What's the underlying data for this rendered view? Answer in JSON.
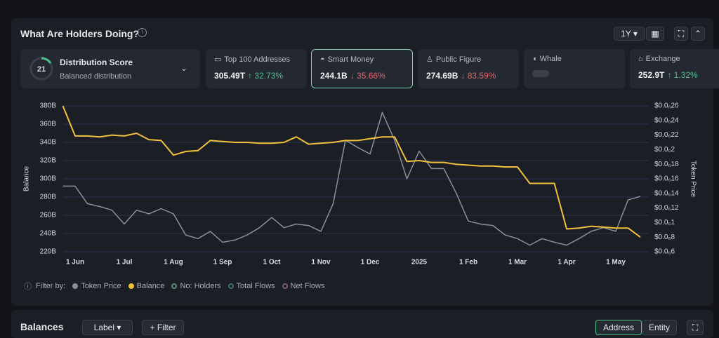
{
  "header": {
    "title": "What Are Holders Doing?",
    "range": "1Y"
  },
  "cards": {
    "distribution": {
      "title": "Distribution Score",
      "score": "21",
      "subtitle": "Balanced distribution"
    },
    "items": [
      {
        "title": "Top 100 Addresses",
        "value": "305.49T",
        "change": "32.73%"
      },
      {
        "title": "Smart Money",
        "value": "244.1B",
        "change": "35.66%"
      },
      {
        "title": "Public Figure",
        "value": "274.69B",
        "change": "83.59%"
      },
      {
        "title": "Whale"
      },
      {
        "title": "Exchange",
        "value": "252.9T",
        "change": "1.32%"
      }
    ]
  },
  "chart_data": {
    "type": "line",
    "y_label": "Balance",
    "y2_label": "Token Price",
    "categories": [
      null,
      "1 Jun",
      null,
      null,
      null,
      "1 Jul",
      null,
      null,
      null,
      "1 Aug",
      null,
      null,
      null,
      "1 Sep",
      null,
      null,
      null,
      "1 Oct",
      null,
      null,
      null,
      "1 Nov",
      null,
      null,
      null,
      "1 Dec",
      null,
      null,
      null,
      "2025",
      null,
      null,
      null,
      "1 Feb",
      null,
      null,
      null,
      "1 Mar",
      null,
      null,
      null,
      "1 Apr",
      null,
      null,
      null,
      "1 May",
      null,
      null
    ],
    "series": [
      {
        "name": "Token Price",
        "color": "#8a8f99",
        "axis": "y2",
        "values": [
          1.5e-07,
          1.5e-07,
          1.26e-07,
          1.22e-07,
          1.17e-07,
          9.8e-08,
          1.17e-07,
          1.12e-07,
          1.19e-07,
          1.12e-07,
          8.3e-08,
          7.8e-08,
          8.8e-08,
          7.3e-08,
          7.6e-08,
          8.3e-08,
          9.3e-08,
          1.07e-07,
          9.3e-08,
          9.8e-08,
          9.6e-08,
          8.8e-08,
          1.26e-07,
          2.13e-07,
          2.03e-07,
          1.94e-07,
          2.51e-07,
          2.13e-07,
          1.6e-07,
          1.98e-07,
          1.74e-07,
          1.74e-07,
          1.41e-07,
          1.02e-07,
          9.8e-08,
          9.6e-08,
          8.3e-08,
          7.8e-08,
          6.9e-08,
          7.8e-08,
          7.3e-08,
          6.9e-08,
          7.8e-08,
          8.8e-08,
          9.3e-08,
          8.8e-08,
          1.31e-07,
          1.36e-07
        ]
      },
      {
        "name": "Balance",
        "color": "#f0c23b",
        "axis": "y",
        "values": [
          380,
          347,
          347,
          346,
          348,
          347,
          350,
          343,
          342,
          326,
          330,
          331,
          342,
          341,
          340,
          340,
          339,
          339,
          340,
          346,
          338,
          339,
          340,
          342,
          342,
          344,
          346,
          346,
          319,
          320,
          318,
          318,
          316,
          315,
          314,
          314,
          313,
          313,
          295,
          295,
          295,
          245,
          246,
          248,
          247,
          246,
          246,
          236
        ]
      }
    ],
    "ylim": [
      220,
      380
    ],
    "yticks": [
      {
        "value": 220,
        "label": "220B"
      },
      {
        "value": 240,
        "label": "240B"
      },
      {
        "value": 260,
        "label": "260B"
      },
      {
        "value": 280,
        "label": "280B"
      },
      {
        "value": 300,
        "label": "300B"
      },
      {
        "value": 320,
        "label": "320B"
      },
      {
        "value": 340,
        "label": "340B"
      },
      {
        "value": 360,
        "label": "360B"
      },
      {
        "value": 380,
        "label": "380B"
      }
    ],
    "y2lim": [
      6e-08,
      2.6e-07
    ],
    "y2ticks": [
      {
        "value": 6e-08,
        "label": "$0.0₆6"
      },
      {
        "value": 8e-08,
        "label": "$0.0₆8"
      },
      {
        "value": 1e-07,
        "label": "$0.0₆1"
      },
      {
        "value": 1.2e-07,
        "label": "$0.0₆12"
      },
      {
        "value": 1.4e-07,
        "label": "$0.0₆14"
      },
      {
        "value": 1.6e-07,
        "label": "$0.0₆16"
      },
      {
        "value": 1.8e-07,
        "label": "$0.0₆18"
      },
      {
        "value": 2e-07,
        "label": "$0.0₆2"
      },
      {
        "value": 2.2e-07,
        "label": "$0.0₆22"
      },
      {
        "value": 2.4e-07,
        "label": "$0.0₆24"
      },
      {
        "value": 2.6e-07,
        "label": "$0.0₆26"
      }
    ],
    "grid": true
  },
  "filters": {
    "label": "Filter by:",
    "others": [
      "No: Holders",
      "Total Flows",
      "Net Flows"
    ]
  },
  "bottom": {
    "title": "Balances",
    "label": "Label",
    "filter": "Filter",
    "tabs": [
      "Address",
      "Entity"
    ]
  }
}
